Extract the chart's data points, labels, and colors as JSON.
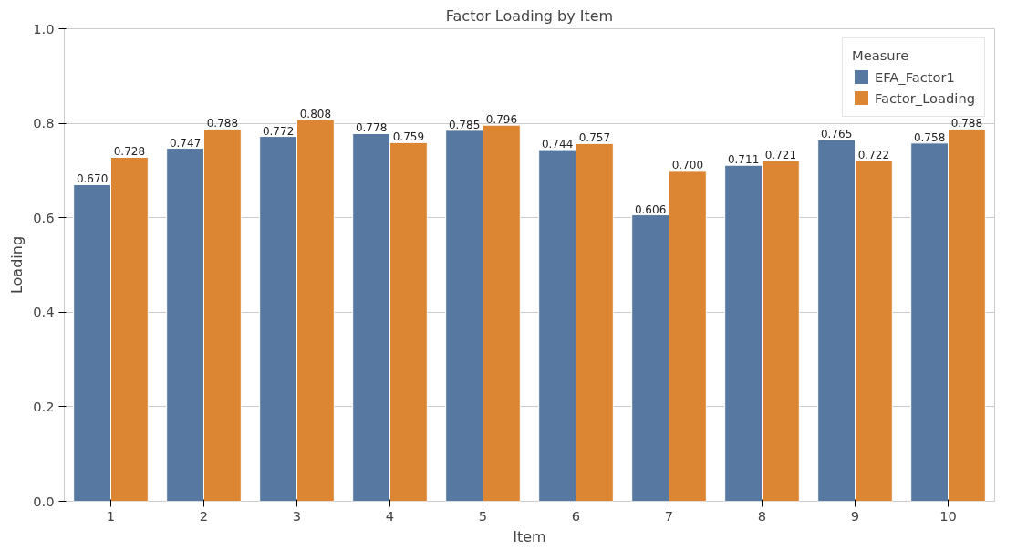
{
  "chart_data": {
    "type": "bar",
    "title": "Factor Loading by Item",
    "xlabel": "Item",
    "ylabel": "Loading",
    "legend_title": "Measure",
    "categories": [
      "1",
      "2",
      "3",
      "4",
      "5",
      "6",
      "7",
      "8",
      "9",
      "10"
    ],
    "series": [
      {
        "name": "EFA_Factor1",
        "color": "#5778a0",
        "values": [
          0.67,
          0.747,
          0.772,
          0.778,
          0.785,
          0.744,
          0.606,
          0.711,
          0.765,
          0.758
        ],
        "value_labels": [
          "0.670",
          "0.747",
          "0.772",
          "0.778",
          "0.785",
          "0.744",
          "0.606",
          "0.711",
          "0.765",
          "0.758"
        ]
      },
      {
        "name": "Factor_Loading",
        "color": "#dc8533",
        "values": [
          0.728,
          0.788,
          0.808,
          0.759,
          0.796,
          0.757,
          0.7,
          0.721,
          0.722,
          0.788
        ],
        "value_labels": [
          "0.728",
          "0.788",
          "0.808",
          "0.759",
          "0.796",
          "0.757",
          "0.700",
          "0.721",
          "0.722",
          "0.788"
        ]
      }
    ],
    "ylim": [
      0,
      1.0
    ],
    "yticks": [
      {
        "value": 0,
        "label": "0.0"
      },
      {
        "value": 0.2,
        "label": "0.2"
      },
      {
        "value": 0.4,
        "label": "0.4"
      },
      {
        "value": 0.6,
        "label": "0.6"
      },
      {
        "value": 0.8,
        "label": "0.8"
      },
      {
        "value": 1.0,
        "label": "1.0"
      }
    ],
    "grid": "y",
    "legend": "top right"
  }
}
